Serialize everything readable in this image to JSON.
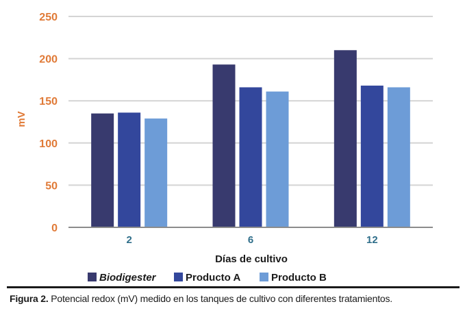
{
  "chart_data": {
    "type": "bar",
    "categories": [
      "2",
      "6",
      "12"
    ],
    "series": [
      {
        "name": "Biodigester",
        "values": [
          135,
          193,
          210
        ],
        "italic": true
      },
      {
        "name": "Producto A",
        "values": [
          136,
          166,
          168
        ],
        "italic": false
      },
      {
        "name": "Producto B",
        "values": [
          129,
          161,
          166
        ],
        "italic": false
      }
    ],
    "title": "",
    "xlabel": "Días de cultivo",
    "ylabel": "mV",
    "ylim": [
      0,
      250
    ],
    "yticks": [
      0,
      50,
      100,
      150,
      200,
      250
    ],
    "grid": true,
    "legend_position": "bottom"
  },
  "colors": {
    "series": [
      "#383a6e",
      "#33479c",
      "#6d9cd7"
    ],
    "ytick_text": "#e07a37",
    "ylabel_text": "#e07a37",
    "xtick_text": "#2f6e8a",
    "xlabel_text": "#1a1a1a",
    "legend_text": "#1a1a1a",
    "grid": "#d4d4d4",
    "axis": "#8c8c8c"
  },
  "caption": {
    "label": "Figura 2.",
    "text": " Potencial redox (mV) medido en los tanques de cultivo con diferentes tratamientos."
  }
}
